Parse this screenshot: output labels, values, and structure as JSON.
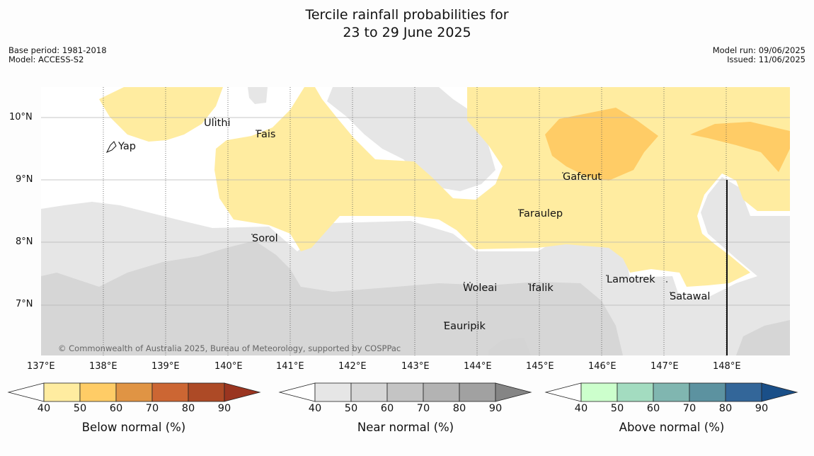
{
  "title": {
    "line1": "Tercile rainfall probabilities for",
    "line2": "23 to 29 June 2025"
  },
  "meta_left": {
    "base_period": "Base period: 1981-2018",
    "model": "Model: ACCESS-S2"
  },
  "meta_right": {
    "model_run": "Model run: 09/06/2025",
    "issued": "Issued: 11/06/2025"
  },
  "lat_labels": [
    "10°N",
    "9°N",
    "8°N",
    "7°N"
  ],
  "lon_labels": [
    "137°E",
    "138°E",
    "139°E",
    "140°E",
    "141°E",
    "142°E",
    "143°E",
    "144°E",
    "145°E",
    "146°E",
    "147°E",
    "148°E"
  ],
  "places": [
    {
      "name": "Ulithi"
    },
    {
      "name": "Fais"
    },
    {
      "name": "Yap"
    },
    {
      "name": "Gaferut"
    },
    {
      "name": "Faraulep"
    },
    {
      "name": "Sorol"
    },
    {
      "name": "Lamotrek"
    },
    {
      "name": "Satawal"
    },
    {
      "name": "Woleai"
    },
    {
      "name": "Ifalik"
    },
    {
      "name": "Eauripik"
    }
  ],
  "copyright": "© Commonwealth of Australia 2025, Bureau of Meteorology, supported by COSPPac",
  "legends": [
    {
      "title": "Below normal (%)",
      "ticks": [
        "40",
        "50",
        "60",
        "70",
        "80",
        "90"
      ],
      "colors": [
        "#ffffff",
        "#ffeca0",
        "#ffcc66",
        "#e09444",
        "#cc6633",
        "#ad4a26",
        "#9a3520"
      ]
    },
    {
      "title": "Near normal (%)",
      "ticks": [
        "40",
        "50",
        "60",
        "70",
        "80",
        "90"
      ],
      "colors": [
        "#ffffff",
        "#e6e6e6",
        "#d6d6d6",
        "#c4c4c4",
        "#b3b3b3",
        "#a1a1a1",
        "#858585"
      ]
    },
    {
      "title": "Above normal (%)",
      "ticks": [
        "40",
        "50",
        "60",
        "70",
        "80",
        "90"
      ],
      "colors": [
        "#ffffff",
        "#ccffcc",
        "#a3dcc0",
        "#80b6b0",
        "#5c92a0",
        "#336699",
        "#1a4f88"
      ]
    }
  ]
}
